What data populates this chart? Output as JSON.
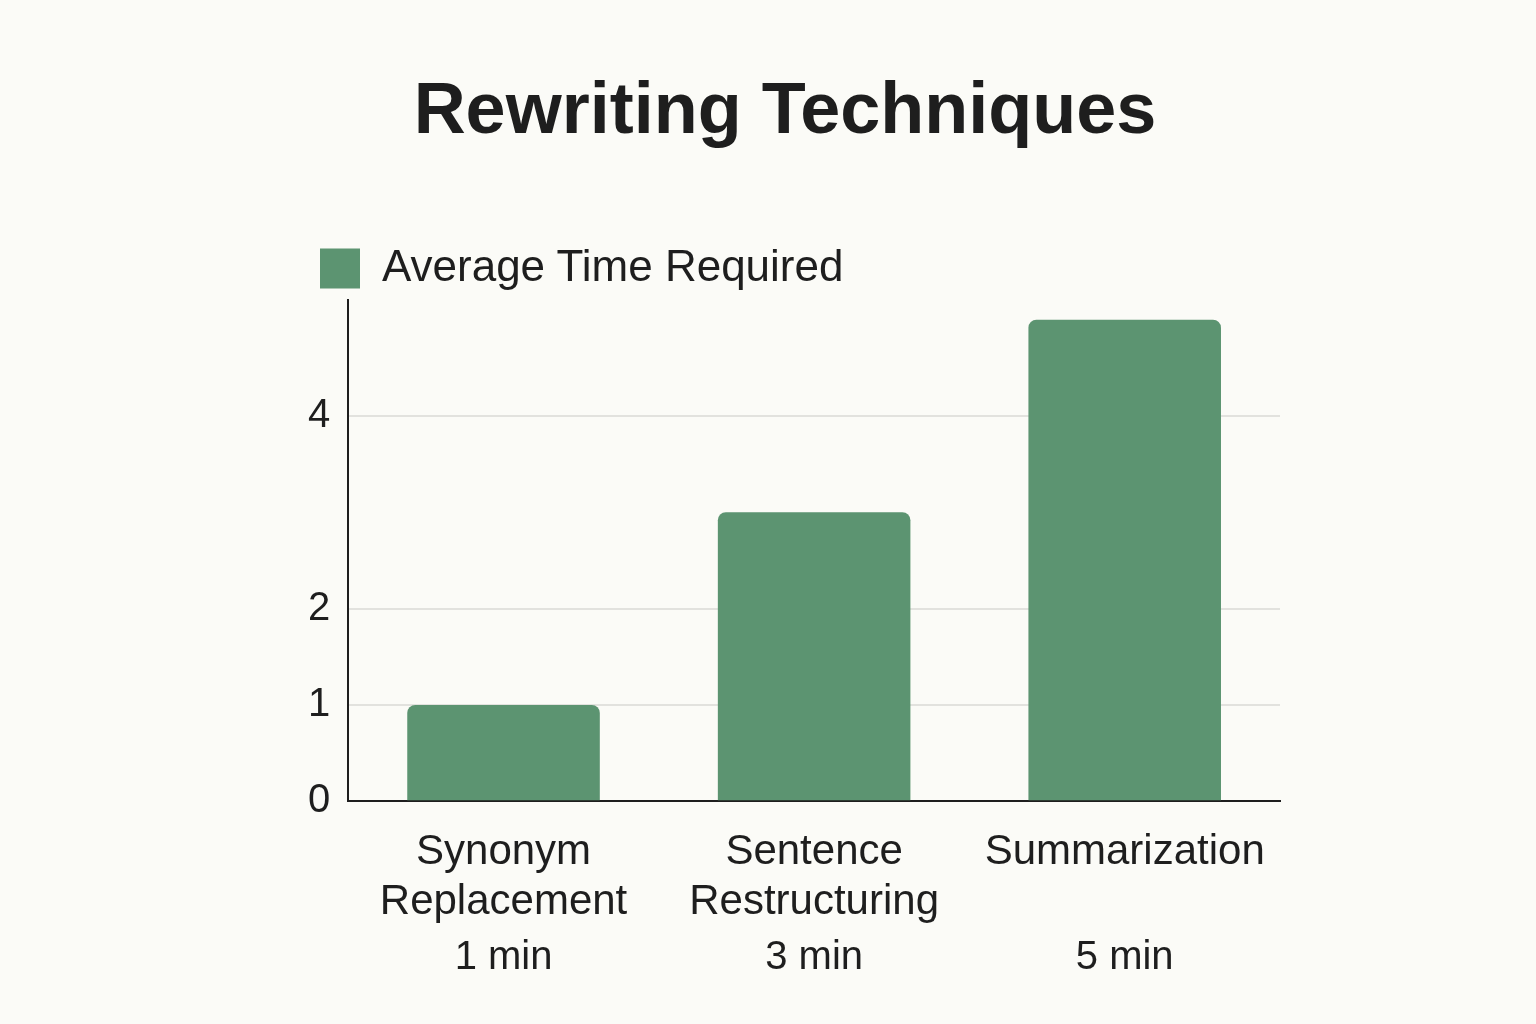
{
  "chart_data": {
    "type": "bar",
    "title": "Rewriting Techniques",
    "categories": [
      "Synonym Replacement",
      "Sentence Restructuring",
      "Summarization"
    ],
    "series": [
      {
        "name": "Average Time Required",
        "color": "#5c9471",
        "values": [
          1,
          3,
          5
        ],
        "value_labels": [
          "1 min",
          "3 min",
          "5 min"
        ]
      }
    ],
    "ylim": [
      0,
      5.2
    ],
    "yticks": [
      0,
      1,
      2,
      4
    ],
    "grid": "y",
    "legend": "top left"
  }
}
